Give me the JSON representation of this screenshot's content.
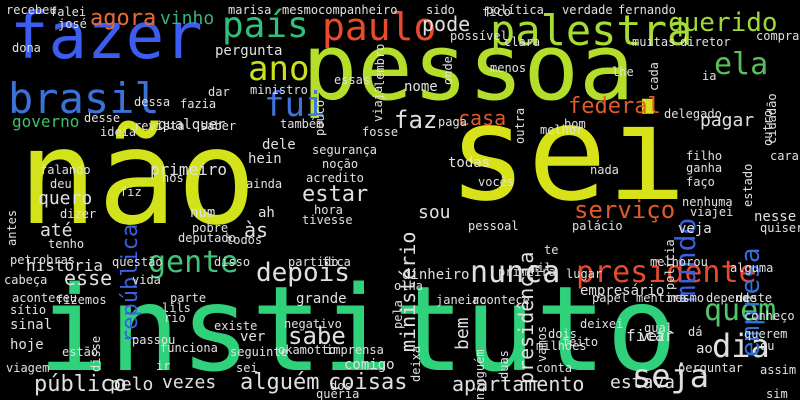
{
  "words": [
    {
      "text": "não",
      "color": "#d2e21b"
    },
    {
      "text": "sei",
      "color": "#d8e219"
    },
    {
      "text": "instituto",
      "color": "#2fd27a"
    },
    {
      "text": "pessoa",
      "color": "#b5de2b"
    },
    {
      "text": "fazer",
      "color": "#3b5df0"
    },
    {
      "text": "brasil",
      "color": "#3a72d8"
    },
    {
      "text": "paulo",
      "color": "#e84a2e"
    },
    {
      "text": "palestra",
      "color": "#a8db34"
    },
    {
      "text": "querido",
      "color": "#9fd938"
    },
    {
      "text": "país",
      "color": "#31c07a"
    },
    {
      "text": "ano",
      "color": "#c8e020"
    },
    {
      "text": "ela",
      "color": "#57c05a"
    },
    {
      "text": "agora",
      "color": "#e86a35"
    },
    {
      "text": "vinho",
      "color": "#39b27a"
    },
    {
      "text": "pode",
      "color": "#e0e0e0"
    },
    {
      "text": "fui",
      "color": "#3f74e0"
    },
    {
      "text": "governo",
      "color": "#3fc06a"
    },
    {
      "text": "pergunta",
      "color": "#e0e0e0"
    },
    {
      "text": "gente",
      "color": "#45c27a"
    },
    {
      "text": "depois",
      "color": "#e0e0e0"
    },
    {
      "text": "nunca",
      "color": "#e0e0e0"
    },
    {
      "text": "presidente",
      "color": "#e84a2e"
    },
    {
      "text": "quem",
      "color": "#52c56c"
    },
    {
      "text": "dia",
      "color": "#e0e0e0"
    },
    {
      "text": "seja",
      "color": "#e0e0e0"
    },
    {
      "text": "empresa",
      "color": "#2f6fd8"
    },
    {
      "text": "mundo",
      "color": "#3a60e0"
    },
    {
      "text": "federal",
      "color": "#e05a2a"
    },
    {
      "text": "casa",
      "color": "#e05a2a"
    },
    {
      "text": "faz",
      "color": "#e0e0e0"
    },
    {
      "text": "pagar",
      "color": "#e0e0e0"
    },
    {
      "text": "esse",
      "color": "#e0e0e0"
    },
    {
      "text": "até",
      "color": "#e0e0e0"
    },
    {
      "text": "república",
      "color": "#3a60e0"
    },
    {
      "text": "quero",
      "color": "#e0e0e0"
    },
    {
      "text": "estar",
      "color": "#e0e0e0"
    },
    {
      "text": "sou",
      "color": "#e0e0e0"
    },
    {
      "text": "serviço",
      "color": "#e05a2a"
    },
    {
      "text": "ministério",
      "color": "#e0e0e0"
    },
    {
      "text": "presidência",
      "color": "#e0e0e0"
    },
    {
      "text": "sabe",
      "color": "#e0e0e0"
    },
    {
      "text": "coisas",
      "color": "#e0e0e0"
    },
    {
      "text": "apartamento",
      "color": "#e0e0e0"
    },
    {
      "text": "estava",
      "color": "#e0e0e0"
    },
    {
      "text": "vezes",
      "color": "#e0e0e0"
    },
    {
      "text": "alguém",
      "color": "#e0e0e0"
    },
    {
      "text": "público",
      "color": "#e0e0e0"
    },
    {
      "text": "pelo",
      "color": "#e0e0e0"
    },
    {
      "text": "história",
      "color": "#e0e0e0"
    },
    {
      "text": "dinheiro",
      "color": "#e0e0e0"
    },
    {
      "text": "empresário",
      "color": "#e0e0e0"
    },
    {
      "text": "bem",
      "color": "#e0e0e0"
    },
    {
      "text": "comigo",
      "color": "#e0e0e0"
    },
    {
      "text": "primeiro",
      "color": "#e0e0e0"
    },
    {
      "text": "dele",
      "color": "#e0e0e0"
    },
    {
      "text": "hein",
      "color": "#e0e0e0"
    },
    {
      "text": "acredito",
      "color": "#e0e0e0"
    },
    {
      "text": "num",
      "color": "#e0e0e0"
    },
    {
      "text": "ah",
      "color": "#e0e0e0"
    },
    {
      "text": "às",
      "color": "#e0e0e0"
    },
    {
      "text": "todas",
      "color": "#e0e0e0"
    },
    {
      "text": "nada",
      "color": "#e0e0e0"
    },
    {
      "text": "veja",
      "color": "#e0e0e0"
    },
    {
      "text": "nesse",
      "color": "#e0e0e0"
    },
    {
      "text": "ficar",
      "color": "#e0e0e0"
    },
    {
      "text": "vez",
      "color": "#e0e0e0"
    },
    {
      "text": "ao",
      "color": "#e0e0e0"
    },
    {
      "text": "grande",
      "color": "#e0e0e0"
    },
    {
      "text": "ver",
      "color": "#e0e0e0"
    },
    {
      "text": "sinal",
      "color": "#e0e0e0"
    },
    {
      "text": "hoje",
      "color": "#e0e0e0"
    },
    {
      "text": "sítio",
      "color": "#e0e0e0"
    },
    {
      "text": "cabeça",
      "color": "#e0e0e0"
    },
    {
      "text": "deu",
      "color": "#e0e0e0"
    },
    {
      "text": "petrobras",
      "color": "#e0e0e0"
    },
    {
      "text": "vida",
      "color": "#e0e0e0"
    },
    {
      "text": "fazia",
      "color": "#e0e0e0"
    },
    {
      "text": "qualquer",
      "color": "#e0e0e0"
    },
    {
      "text": "também",
      "color": "#e0e0e0"
    },
    {
      "text": "segurança",
      "color": "#e0e0e0"
    },
    {
      "text": "nome",
      "color": "#e0e0e0"
    },
    {
      "text": "ia",
      "color": "#e0e0e0"
    },
    {
      "text": "polícia",
      "color": "#e0e0e0"
    },
    {
      "text": "pela",
      "color": "#e0e0e0"
    },
    {
      "text": "mil",
      "color": "#e0e0e0"
    },
    {
      "text": "dois",
      "color": "#e0e0e0"
    },
    {
      "text": "milhões",
      "color": "#e0e0e0"
    },
    {
      "text": "feito",
      "color": "#e0e0e0"
    },
    {
      "text": "conta",
      "color": "#e0e0e0"
    },
    {
      "text": "sei",
      "color": "#e0e0e0"
    },
    {
      "text": "ir",
      "color": "#e0e0e0"
    },
    {
      "text": "passou",
      "color": "#e0e0e0"
    },
    {
      "text": "funciona",
      "color": "#e0e0e0"
    },
    {
      "text": "existe",
      "color": "#e0e0e0"
    },
    {
      "text": "negativo",
      "color": "#e0e0e0"
    },
    {
      "text": "okamotto",
      "color": "#e0e0e0"
    },
    {
      "text": "imprensa",
      "color": "#e0e0e0"
    },
    {
      "text": "fizemos",
      "color": "#e0e0e0"
    },
    {
      "text": "aconteceu",
      "color": "#e0e0e0"
    },
    {
      "text": "parte",
      "color": "#e0e0e0"
    },
    {
      "text": "seguinte",
      "color": "#e0e0e0"
    },
    {
      "text": "questão",
      "color": "#e0e0e0"
    },
    {
      "text": "deputado",
      "color": "#e0e0e0"
    },
    {
      "text": "disso",
      "color": "#e0e0e0"
    },
    {
      "text": "partido",
      "color": "#e0e0e0"
    },
    {
      "text": "fica",
      "color": "#e0e0e0"
    },
    {
      "text": "olha",
      "color": "#e0e0e0"
    },
    {
      "text": "janeiro",
      "color": "#e0e0e0"
    },
    {
      "text": "acontece",
      "color": "#e0e0e0"
    },
    {
      "text": "papel",
      "color": "#e0e0e0"
    },
    {
      "text": "mentira",
      "color": "#e0e0e0"
    },
    {
      "text": "mesmo",
      "color": "#e0e0e0"
    },
    {
      "text": "depende",
      "color": "#e0e0e0"
    },
    {
      "text": "deste",
      "color": "#e0e0e0"
    },
    {
      "text": "conheço",
      "color": "#e0e0e0"
    },
    {
      "text": "ou",
      "color": "#e0e0e0"
    },
    {
      "text": "assim",
      "color": "#e0e0e0"
    },
    {
      "text": "viagem",
      "color": "#e0e0e0"
    },
    {
      "text": "estão",
      "color": "#e0e0e0"
    },
    {
      "text": "perguntar",
      "color": "#e0e0e0"
    },
    {
      "text": "recebeu",
      "color": "#e0e0e0"
    },
    {
      "text": "falei",
      "color": "#e0e0e0"
    },
    {
      "text": "josé",
      "color": "#e0e0e0"
    },
    {
      "text": "dona",
      "color": "#e0e0e0"
    },
    {
      "text": "dessa",
      "color": "#e0e0e0"
    },
    {
      "text": "desse",
      "color": "#e0e0e0"
    },
    {
      "text": "revista",
      "color": "#e0e0e0"
    },
    {
      "text": "ideia",
      "color": "#e0e0e0"
    },
    {
      "text": "saber",
      "color": "#e0e0e0"
    },
    {
      "text": "falando",
      "color": "#e0e0e0"
    },
    {
      "text": "nos",
      "color": "#e0e0e0"
    },
    {
      "text": "ainda",
      "color": "#e0e0e0"
    },
    {
      "text": "dizer",
      "color": "#e0e0e0"
    },
    {
      "text": "antes",
      "color": "#e0e0e0"
    },
    {
      "text": "tenho",
      "color": "#e0e0e0"
    },
    {
      "text": "pobre",
      "color": "#e0e0e0"
    },
    {
      "text": "todos",
      "color": "#e0e0e0"
    },
    {
      "text": "hora",
      "color": "#e0e0e0"
    },
    {
      "text": "tivesse",
      "color": "#e0e0e0"
    },
    {
      "text": "pessoal",
      "color": "#e0e0e0"
    },
    {
      "text": "palácio",
      "color": "#e0e0e0"
    },
    {
      "text": "nenhuma",
      "color": "#e0e0e0"
    },
    {
      "text": "viajei",
      "color": "#e0e0e0"
    },
    {
      "text": "quiser",
      "color": "#e0e0e0"
    },
    {
      "text": "marisa",
      "color": "#e0e0e0"
    },
    {
      "text": "mesmo",
      "color": "#e0e0e0"
    },
    {
      "text": "companheiro",
      "color": "#e0e0e0"
    },
    {
      "text": "sido",
      "color": "#e0e0e0"
    },
    {
      "text": "política",
      "color": "#e0e0e0"
    },
    {
      "text": "verdade",
      "color": "#e0e0e0"
    },
    {
      "text": "fernando",
      "color": "#e0e0e0"
    },
    {
      "text": "comprar",
      "color": "#e0e0e0"
    },
    {
      "text": "diretor",
      "color": "#e0e0e0"
    },
    {
      "text": "muitas",
      "color": "#e0e0e0"
    },
    {
      "text": "clara",
      "color": "#e0e0e0"
    },
    {
      "text": "possível",
      "color": "#e0e0e0"
    },
    {
      "text": "menos",
      "color": "#e0e0e0"
    },
    {
      "text": "lhe",
      "color": "#e0e0e0"
    },
    {
      "text": "bom",
      "color": "#e0e0e0"
    },
    {
      "text": "melhor",
      "color": "#e0e0e0"
    },
    {
      "text": "delegado",
      "color": "#e0e0e0"
    },
    {
      "text": "filho",
      "color": "#e0e0e0"
    },
    {
      "text": "ganha",
      "color": "#e0e0e0"
    },
    {
      "text": "faço",
      "color": "#e0e0e0"
    },
    {
      "text": "estado",
      "color": "#e0e0e0"
    },
    {
      "text": "cidadão",
      "color": "#e0e0e0"
    },
    {
      "text": "cara",
      "color": "#e0e0e0"
    },
    {
      "text": "paga",
      "color": "#e0e0e0"
    },
    {
      "text": "essas",
      "color": "#e0e0e0"
    },
    {
      "text": "ministro",
      "color": "#e0e0e0"
    },
    {
      "text": "viaja",
      "color": "#e0e0e0"
    },
    {
      "text": "noção",
      "color": "#e0e0e0"
    },
    {
      "text": "vocês",
      "color": "#e0e0e0"
    },
    {
      "text": "dar",
      "color": "#e0e0e0"
    },
    {
      "text": "fosse",
      "color": "#e0e0e0"
    },
    {
      "text": "fico",
      "color": "#e0e0e0"
    },
    {
      "text": "lembro",
      "color": "#e0e0e0"
    },
    {
      "text": "pouco",
      "color": "#e0e0e0"
    },
    {
      "text": "onde",
      "color": "#e0e0e0"
    },
    {
      "text": "outra",
      "color": "#e0e0e0"
    },
    {
      "text": "cada",
      "color": "#e0e0e0"
    },
    {
      "text": "outro",
      "color": "#e0e0e0"
    },
    {
      "text": "primeira",
      "color": "#e0e0e0"
    },
    {
      "text": "lugar",
      "color": "#e0e0e0"
    },
    {
      "text": "te",
      "color": "#e0e0e0"
    },
    {
      "text": "melhorou",
      "color": "#e0e0e0"
    },
    {
      "text": "alguma",
      "color": "#e0e0e0"
    },
    {
      "text": "deixa",
      "color": "#e0e0e0"
    },
    {
      "text": "duas",
      "color": "#e0e0e0"
    },
    {
      "text": "vamos",
      "color": "#e0e0e0"
    },
    {
      "text": "deixei",
      "color": "#e0e0e0"
    },
    {
      "text": "qual",
      "color": "#e0e0e0"
    },
    {
      "text": "dá",
      "color": "#e0e0e0"
    },
    {
      "text": "querem",
      "color": "#e0e0e0"
    },
    {
      "text": "lils",
      "color": "#e0e0e0"
    },
    {
      "text": "rio",
      "color": "#e0e0e0"
    },
    {
      "text": "disse",
      "color": "#e0e0e0"
    },
    {
      "text": "dos",
      "color": "#e0e0e0"
    },
    {
      "text": "queria",
      "color": "#e0e0e0"
    },
    {
      "text": "ninguém",
      "color": "#e0e0e0"
    },
    {
      "text": "fiz",
      "color": "#e0e0e0"
    },
    {
      "text": "sim",
      "color": "#e0e0e0"
    }
  ]
}
